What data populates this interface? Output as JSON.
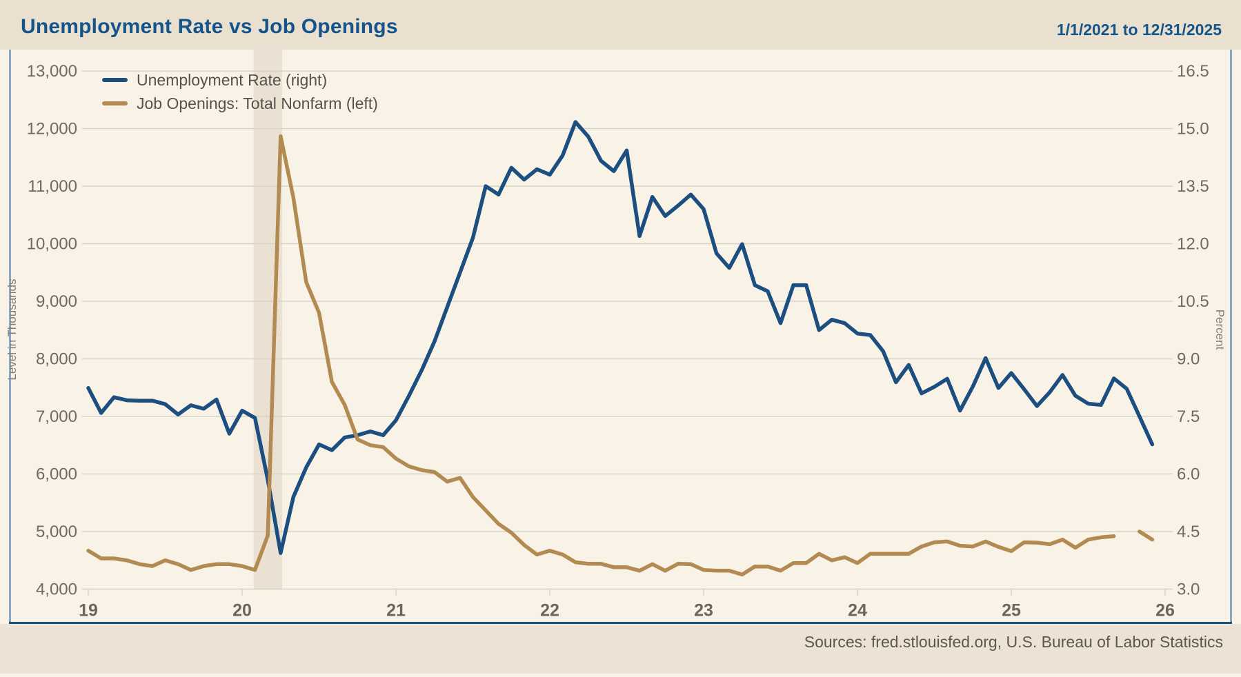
{
  "header": {
    "title": "Unemployment Rate vs Job Openings",
    "date_range": "1/1/2021 to 12/31/2025"
  },
  "footer": {
    "sources": "Sources: fred.stlouisfed.org, U.S. Bureau of Labor Statistics"
  },
  "colors": {
    "accent_blue": "#1d4e80",
    "accent_brown": "#b28a52",
    "title_navy": "#15548a",
    "header_band": "#e9e0d0",
    "footer_band": "#ece3d4",
    "plot_bg": "#f9f3e7",
    "recession_band": "#eae1d2",
    "gridline": "#d8d3c7",
    "axis_text": "#6e6a62",
    "year_text": "#6b6760",
    "border_side_blue": "#4878a8",
    "border_bottom_blue": "#1d4e80"
  },
  "chart_data": {
    "type": "line",
    "title": "Unemployment Rate vs Job Openings",
    "x_axis": {
      "tick_labels": [
        "19",
        "20",
        "21",
        "22",
        "23",
        "24",
        "25",
        "26"
      ],
      "tick_years": [
        19,
        20,
        21,
        22,
        23,
        24,
        25,
        26
      ],
      "start_year": 2019,
      "months_per_point": 1
    },
    "left_axis": {
      "label": "Level in Thousands",
      "tick_labels": [
        "13,000",
        "12,000",
        "11,000",
        "10,000",
        "9,000",
        "8,000",
        "7,000",
        "6,000",
        "5,000",
        "4,000"
      ],
      "range": [
        4000,
        13000
      ]
    },
    "right_axis": {
      "label": "Percent",
      "tick_labels": [
        "16.5",
        "15.0",
        "13.5",
        "12.0",
        "10.5",
        "9.0",
        "7.5",
        "6.0",
        "4.5",
        "3.0"
      ],
      "range": [
        3.0,
        16.5
      ]
    },
    "legend": [
      {
        "label": "Unemployment Rate (right)",
        "color": "#1d4e80"
      },
      {
        "label": "Job Openings: Total Nonfarm (left)",
        "color": "#b28a52"
      }
    ],
    "recession_band": {
      "start_year_frac": 20.075,
      "end_year_frac": 20.26
    },
    "grid": true,
    "legend_position": "top-left",
    "series": [
      {
        "name": "Unemployment Rate (right)",
        "axis": "right",
        "units": "percent",
        "color": "#1d4e80",
        "first_month": "2019-01",
        "values": [
          8.24,
          7.59,
          8.0,
          7.92,
          7.91,
          7.91,
          7.82,
          7.55,
          7.79,
          7.7,
          7.94,
          7.05,
          7.65,
          7.46,
          5.85,
          3.94,
          5.4,
          6.17,
          6.77,
          6.62,
          6.95,
          7.01,
          7.11,
          7.01,
          7.4,
          8.03,
          8.7,
          9.45,
          10.35,
          11.25,
          12.15,
          13.5,
          13.28,
          13.98,
          13.67,
          13.94,
          13.8,
          14.3,
          15.17,
          14.79,
          14.16,
          13.89,
          14.43,
          12.2,
          13.22,
          12.72,
          12.99,
          13.28,
          12.9,
          11.75,
          11.37,
          11.99,
          10.92,
          10.76,
          9.93,
          10.92,
          10.92,
          9.75,
          10.02,
          9.93,
          9.66,
          9.62,
          9.2,
          8.39,
          8.84,
          8.1,
          8.27,
          8.48,
          7.65,
          8.28,
          9.02,
          8.24,
          8.63,
          8.21,
          7.77,
          8.13,
          8.58,
          8.04,
          7.83,
          7.8,
          8.49,
          8.22,
          7.5,
          6.77
        ]
      },
      {
        "name": "Job Openings: Total Nonfarm (left)",
        "axis": "left",
        "units": "thousands",
        "color": "#b28a52",
        "first_month": "2019-01",
        "values": [
          4667,
          4533,
          4533,
          4500,
          4433,
          4400,
          4500,
          4433,
          4333,
          4400,
          4433,
          4433,
          4400,
          4333,
          4933,
          11867,
          10800,
          9333,
          8800,
          7600,
          7200,
          6600,
          6500,
          6467,
          6267,
          6133,
          6067,
          6033,
          5867,
          5933,
          5600,
          5367,
          5133,
          4980,
          4767,
          4600,
          4667,
          4600,
          4467,
          4440,
          4440,
          4380,
          4380,
          4320,
          4433,
          4320,
          4440,
          4433,
          4333,
          4320,
          4320,
          4253,
          4393,
          4393,
          4320,
          4453,
          4453,
          4613,
          4500,
          4553,
          4453,
          4613,
          4613,
          4613,
          4613,
          4740,
          4813,
          4827,
          4753,
          4740,
          4827,
          4733,
          4660,
          4813,
          4807,
          4780,
          4860,
          4720,
          4860,
          4900,
          4920,
          null,
          5000,
          4860
        ]
      }
    ]
  }
}
